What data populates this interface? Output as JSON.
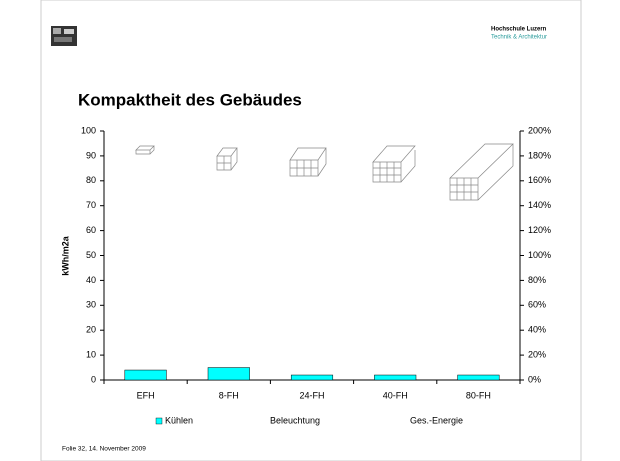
{
  "header": {
    "institution": "Hochschule Luzern",
    "department": "Technik & Architektur"
  },
  "title": "Kompaktheit des Gebäudes",
  "footer": "Folie   32, 14. November 2009",
  "chart_data": {
    "type": "bar",
    "y_label": "kWh/m2a",
    "categories": [
      "EFH",
      "8-FH",
      "24-FH",
      "40-FH",
      "80-FH"
    ],
    "series": [
      {
        "name": "Kühlen",
        "color": "#00ffff",
        "values": [
          4,
          5,
          2,
          2,
          2
        ]
      }
    ],
    "legend_extra": [
      "Beleuchtung",
      "Ges.-Energie"
    ],
    "ylim": [
      0,
      100
    ],
    "yticks": [
      0,
      10,
      20,
      30,
      40,
      50,
      60,
      70,
      80,
      90,
      100
    ],
    "y2lim": [
      0,
      200
    ],
    "y2ticks": [
      {
        "value": 0,
        "label": "0%"
      },
      {
        "value": 20,
        "label": "20%"
      },
      {
        "value": 40,
        "label": "40%"
      },
      {
        "value": 60,
        "label": "60%"
      },
      {
        "value": 80,
        "label": "80%"
      },
      {
        "value": 100,
        "label": "100%"
      },
      {
        "value": 120,
        "label": "120%"
      },
      {
        "value": 140,
        "label": "140%"
      },
      {
        "value": 160,
        "label": "160%"
      },
      {
        "value": 180,
        "label": "180%"
      },
      {
        "value": 200,
        "label": "200%"
      }
    ],
    "grid": false
  }
}
